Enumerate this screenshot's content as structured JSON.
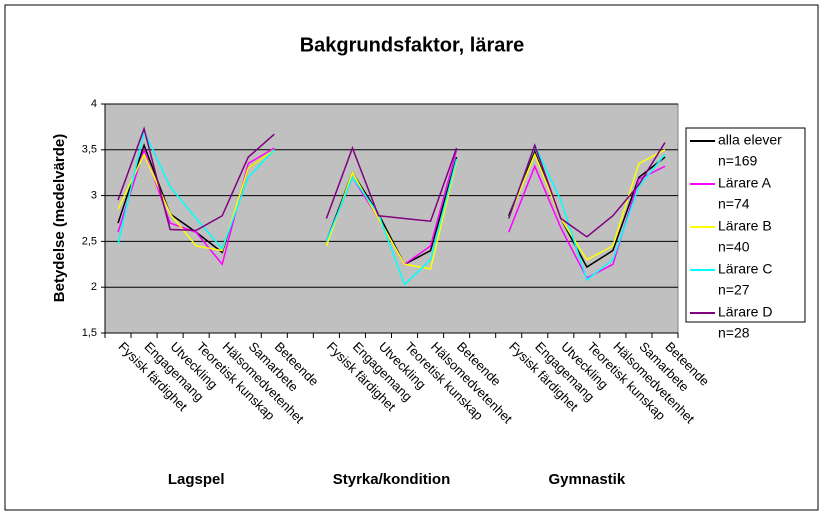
{
  "chart_data": {
    "type": "line",
    "title": "Bakgrundsfaktor, lärare",
    "y_label": "Betydelse (medelvärde)",
    "categories": [
      "Fysisk färdighet",
      "Engagemang",
      "Utveckling",
      "Teoretisk kunskap",
      "Hälsomedvetenhet",
      "Samarbete",
      "Beteende",
      null,
      "Fysisk färdighet",
      "Engagemang",
      "Utveckling",
      "Teoretisk kunskap",
      "Hälsomedvetenhet",
      "Beteende",
      null,
      "Fysisk färdighet",
      "Engagemang",
      "Utveckling",
      "Teoretisk kunskap",
      "Hälsomedvetenhet",
      "Samarbete",
      "Beteende"
    ],
    "groups": [
      {
        "name": "Lagspel",
        "from": 0,
        "to": 6
      },
      {
        "name": "Styrka/kondition",
        "from": 8,
        "to": 13
      },
      {
        "name": "Gymnastik",
        "from": 15,
        "to": 21
      }
    ],
    "series": [
      {
        "name": "alla elever",
        "count_label": "n=169",
        "color": "#000000",
        "values": [
          2.7,
          3.55,
          2.8,
          2.6,
          2.38,
          3.3,
          3.5,
          null,
          2.5,
          3.25,
          2.8,
          2.25,
          2.4,
          3.42,
          null,
          2.78,
          3.48,
          2.75,
          2.22,
          2.4,
          3.2,
          3.42
        ]
      },
      {
        "name": "Lärare A",
        "count_label": "n=74",
        "color": "#ff00ff",
        "values": [
          2.6,
          3.5,
          2.7,
          2.6,
          2.25,
          3.35,
          3.52,
          null,
          2.5,
          3.2,
          2.75,
          2.25,
          2.45,
          3.5,
          null,
          2.6,
          3.32,
          2.65,
          2.1,
          2.25,
          3.18,
          3.32
        ]
      },
      {
        "name": "Lärare B",
        "count_label": "n=40",
        "color": "#ffff00",
        "values": [
          2.85,
          3.45,
          2.8,
          2.45,
          2.4,
          3.3,
          3.5,
          null,
          2.45,
          3.25,
          2.75,
          2.25,
          2.2,
          3.38,
          null,
          2.75,
          3.45,
          2.75,
          2.3,
          2.45,
          3.35,
          3.5
        ]
      },
      {
        "name": "Lärare C",
        "count_label": "n=27",
        "color": "#00ffff",
        "values": [
          2.47,
          3.7,
          3.1,
          2.75,
          2.42,
          3.2,
          3.5,
          null,
          2.5,
          3.2,
          2.8,
          2.03,
          2.3,
          3.4,
          null,
          2.75,
          3.55,
          2.95,
          2.08,
          2.3,
          3.1,
          3.45
        ]
      },
      {
        "name": "Lärare D",
        "count_label": "n=28",
        "color": "#800080",
        "values": [
          2.95,
          3.73,
          2.63,
          2.62,
          2.78,
          3.42,
          3.67,
          null,
          2.75,
          3.52,
          2.78,
          2.75,
          2.72,
          3.52,
          null,
          2.75,
          3.55,
          2.75,
          2.55,
          2.78,
          3.12,
          3.58
        ]
      }
    ],
    "ylim": [
      1.5,
      4
    ],
    "yticks": [
      {
        "value": 1.5,
        "label": "1,5"
      },
      2,
      {
        "value": 2.5,
        "label": "2,5"
      },
      3,
      {
        "value": 3.5,
        "label": "3,5"
      },
      4
    ],
    "grid": true,
    "legend": "right",
    "plot_background": "#c0c0c0"
  }
}
